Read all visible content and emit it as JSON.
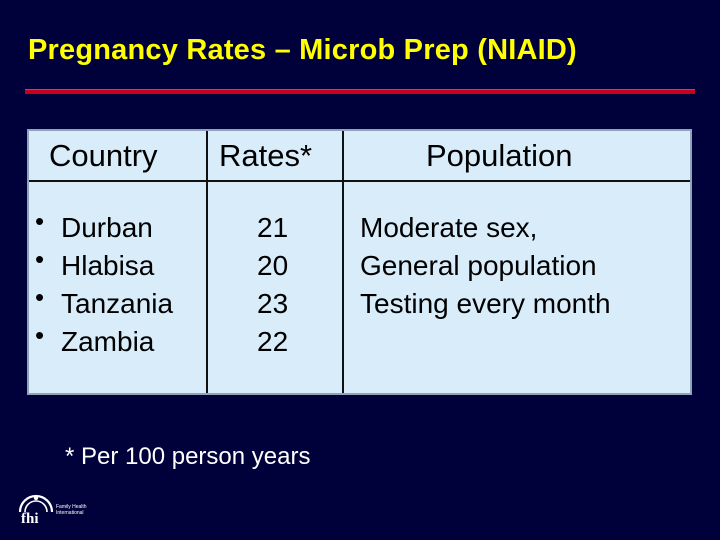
{
  "slide": {
    "title": "Pregnancy Rates – Microb Prep (NIAID)",
    "footnote": "* Per 100 person years"
  },
  "table": {
    "headers": {
      "country": "Country",
      "rates": "Rates*",
      "population": "Population"
    },
    "bullet_glyph": "•",
    "countries": [
      "Durban",
      "Hlabisa",
      "Tanzania",
      "Zambia"
    ],
    "rates": [
      "21",
      "20",
      "23",
      "22"
    ],
    "population_lines": [
      "Moderate sex,",
      "General population",
      "Testing every month"
    ]
  },
  "logo": {
    "mark_text": "fhi",
    "org_line1": "Family Health",
    "org_line2": "International"
  },
  "colors": {
    "background": "#00003a",
    "title": "#ffff00",
    "rule": "#c8001a",
    "table_fill": "#d8ecfa",
    "footnote": "#ffffff"
  }
}
